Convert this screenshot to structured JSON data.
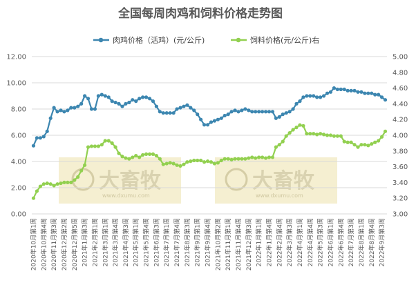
{
  "chart_data": {
    "type": "line",
    "title": "全国每周肉鸡和饲料价格走势图",
    "left_axis": {
      "range": [
        0,
        12
      ],
      "ticks": [
        "0.00",
        "2.00",
        "4.00",
        "6.00",
        "8.00",
        "10.00",
        "12.00"
      ]
    },
    "right_axis": {
      "range": [
        3.0,
        5.0
      ],
      "ticks": [
        "3.00",
        "3.20",
        "3.40",
        "3.60",
        "3.80",
        "4.00",
        "4.20",
        "4.40",
        "4.60",
        "4.80",
        "5.00"
      ]
    },
    "grid": "horizontal",
    "legend_position": "top",
    "watermark": {
      "brand": "大畜牧",
      "url": "www.dxumu.com"
    },
    "x_tick_labels": [
      "2020年10月第1周",
      "2020年10月第4周",
      "2020年11月第3周",
      "2020年12月第2周",
      "2020年12月第5周",
      "2021年1月第3周",
      "2021年2月第1周",
      "2021年3月第1周",
      "2021年3月第4周",
      "2021年4月第3周",
      "2021年5月第1周",
      "2021年5月第4周",
      "2021年6月第3周",
      "2021年7月第1周",
      "2021年7月第4周",
      "2021年8月第3周",
      "2021年9月第1周",
      "2021年9月第4周",
      "2021年10月第2周",
      "2021年11月第1周",
      "2021年11月第4周",
      "2021年12月第3周",
      "2022年1月第1周",
      "2022年1月第4周",
      "2022年2月第4周",
      "2022年3月第3周",
      "2022年4月第1周",
      "2022年4月第4周",
      "2022年5月第3周",
      "2022年6月第1周",
      "2022年6月第4周",
      "2022年7月第3周",
      "2022年8月第1周",
      "2022年8月第4周",
      "2022年9月第3周"
    ],
    "series": [
      {
        "name": "肉鸡价格（活鸡）(元/公斤)",
        "axis": "left",
        "color": "#3c86b0",
        "values": [
          5.2,
          5.8,
          5.8,
          5.9,
          6.3,
          7.3,
          8.1,
          7.8,
          7.9,
          7.8,
          7.9,
          8.1,
          8.1,
          8.2,
          8.4,
          9.0,
          8.8,
          8.0,
          8.0,
          9.0,
          9.1,
          9.0,
          8.9,
          8.6,
          8.5,
          8.4,
          8.2,
          8.4,
          8.5,
          8.7,
          8.6,
          8.8,
          8.9,
          8.9,
          8.8,
          8.6,
          8.2,
          7.8,
          7.7,
          7.7,
          7.7,
          7.7,
          8.0,
          8.1,
          8.2,
          8.3,
          8.1,
          7.9,
          7.6,
          7.2,
          6.8,
          6.8,
          7.0,
          7.1,
          7.2,
          7.3,
          7.5,
          7.6,
          7.8,
          7.9,
          7.8,
          7.9,
          8.0,
          7.9,
          7.8,
          7.8,
          7.8,
          7.8,
          7.8,
          7.8,
          7.8,
          7.3,
          7.4,
          7.6,
          7.7,
          7.8,
          8.0,
          8.4,
          8.6,
          8.9,
          9.0,
          9.0,
          9.0,
          8.9,
          8.9,
          9.0,
          9.2,
          9.3,
          9.6,
          9.5,
          9.5,
          9.5,
          9.4,
          9.4,
          9.4,
          9.3,
          9.3,
          9.2,
          9.2,
          9.2,
          9.1,
          9.1,
          8.9,
          8.7
        ]
      },
      {
        "name": "饲料价格(元/公斤)右",
        "axis": "right",
        "color": "#92d050",
        "values": [
          3.2,
          3.29,
          3.35,
          3.38,
          3.39,
          3.38,
          3.36,
          3.38,
          3.39,
          3.4,
          3.4,
          3.4,
          3.43,
          3.47,
          3.55,
          3.62,
          3.85,
          3.86,
          3.86,
          3.86,
          3.88,
          3.93,
          3.93,
          3.9,
          3.85,
          3.77,
          3.73,
          3.71,
          3.7,
          3.72,
          3.74,
          3.72,
          3.75,
          3.76,
          3.76,
          3.76,
          3.74,
          3.7,
          3.63,
          3.64,
          3.65,
          3.64,
          3.62,
          3.61,
          3.63,
          3.66,
          3.67,
          3.68,
          3.68,
          3.68,
          3.66,
          3.67,
          3.66,
          3.64,
          3.65,
          3.68,
          3.7,
          3.7,
          3.69,
          3.7,
          3.7,
          3.7,
          3.7,
          3.71,
          3.72,
          3.71,
          3.72,
          3.72,
          3.71,
          3.72,
          3.72,
          3.85,
          3.88,
          3.92,
          3.99,
          4.03,
          4.07,
          4.1,
          4.13,
          4.12,
          4.02,
          4.02,
          4.02,
          4.01,
          4.02,
          4.01,
          4.0,
          4.0,
          3.99,
          3.99,
          3.99,
          3.92,
          3.91,
          3.91,
          3.88,
          3.85,
          3.88,
          3.88,
          3.87,
          3.89,
          3.91,
          3.93,
          3.98,
          4.05
        ]
      }
    ]
  }
}
